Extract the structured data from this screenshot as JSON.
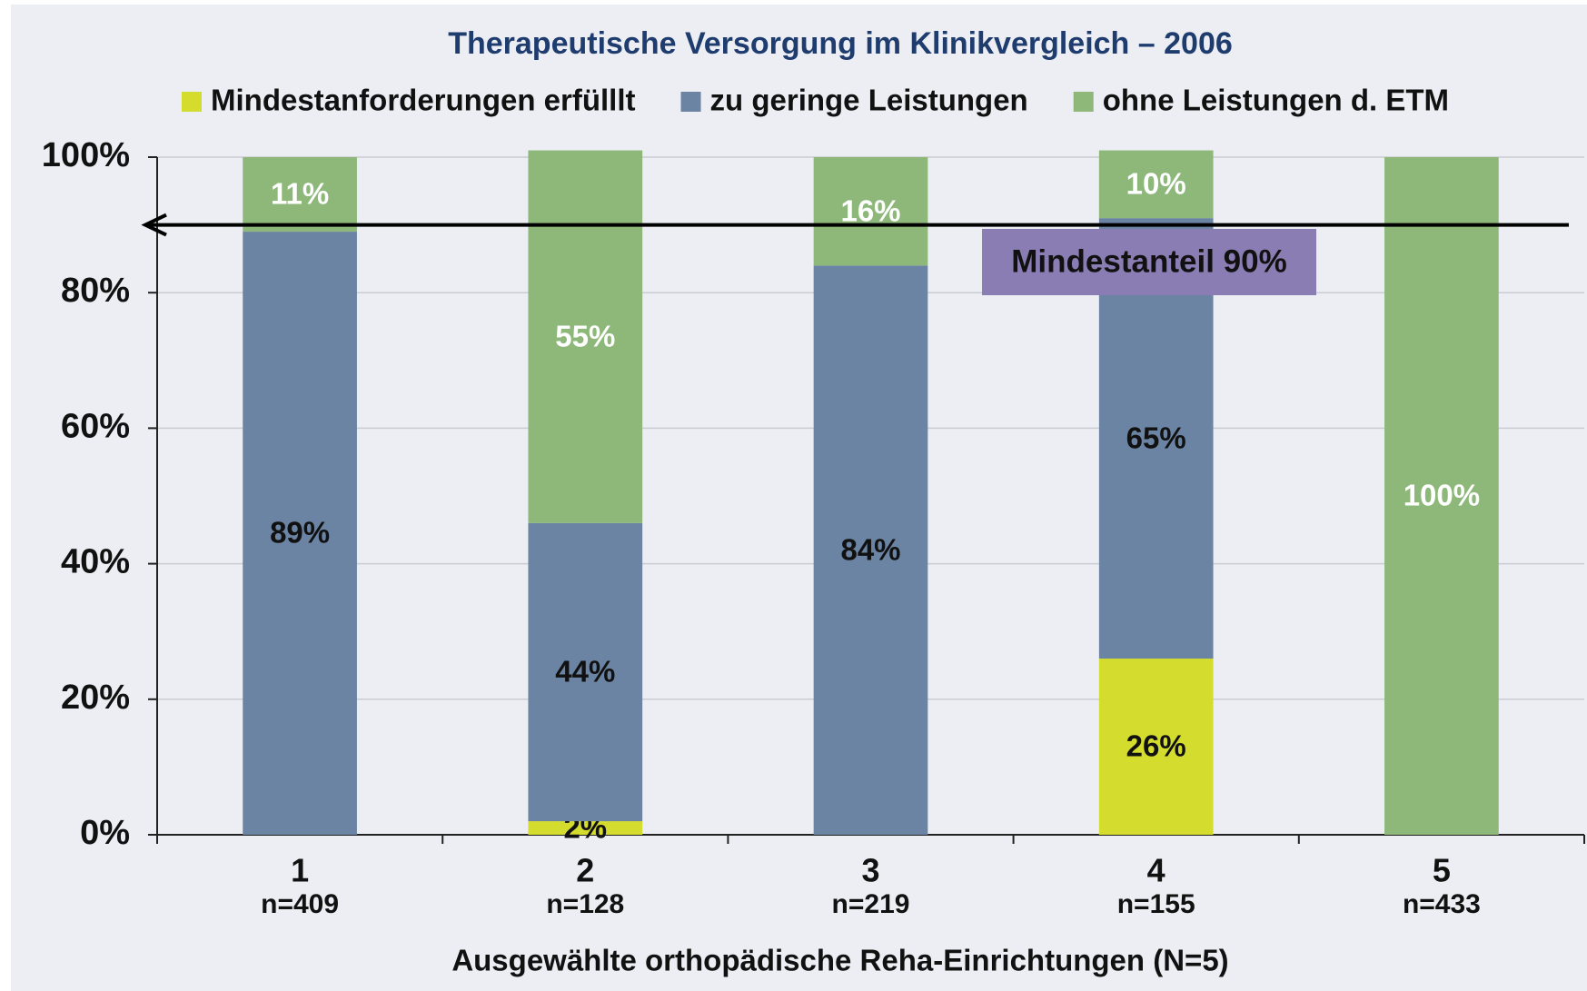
{
  "chart_data": {
    "type": "stacked_bar",
    "title": "Therapeutische Versorgung im Klinikvergleich – 2006",
    "x_label": "Ausgewählte orthopädische Reha-Einrichtungen (N=5)",
    "categories": [
      "1",
      "2",
      "3",
      "4",
      "5"
    ],
    "category_notes": [
      "n=409",
      "n=128",
      "n=219",
      "n=155",
      "n=433"
    ],
    "series": [
      {
        "name": "Mindestanforderungen erfülllt",
        "color": "#d4dc2e",
        "label_color": "#111111",
        "values": [
          null,
          2,
          null,
          26,
          null
        ],
        "value_labels": [
          null,
          "2%",
          null,
          "26%",
          null
        ]
      },
      {
        "name": "zu geringe Leistungen",
        "color": "#6b84a3",
        "label_color": "#111111",
        "values": [
          89,
          44,
          84,
          65,
          null
        ],
        "value_labels": [
          "89%",
          "44%",
          "84%",
          "65%",
          null
        ]
      },
      {
        "name": "ohne Leistungen d. ETM",
        "color": "#8db87a",
        "label_color": "#ffffff",
        "values": [
          11,
          55,
          16,
          10,
          100
        ],
        "value_labels": [
          "11%",
          "55%",
          "16%",
          "10%",
          "100%"
        ]
      }
    ],
    "ylim": [
      0,
      100
    ],
    "yticks": [
      {
        "value": 0,
        "label": "0%"
      },
      {
        "value": 20,
        "label": "20%"
      },
      {
        "value": 40,
        "label": "40%"
      },
      {
        "value": 60,
        "label": "60%"
      },
      {
        "value": 80,
        "label": "80%"
      },
      {
        "value": 100,
        "label": "100%"
      }
    ],
    "grid": true,
    "reference_line": {
      "value": 90,
      "label": "Mindestanteil 90%",
      "color": "#8a7db4"
    }
  }
}
